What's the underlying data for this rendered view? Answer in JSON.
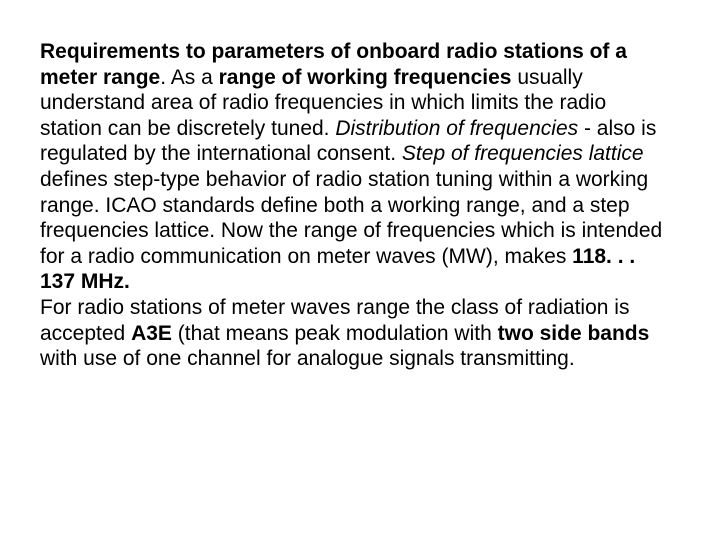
{
  "doc": {
    "font_family": "Arial",
    "font_size_pt": 21,
    "line_height": 1.22,
    "text_color": "#000000",
    "background_color": "#ffffff",
    "t1": "Requirements to parameters of onboard radio stations of a meter range",
    "t2": ". As a ",
    "t3": "range of working frequencies",
    "t4": " usually understand area of radio frequencies in which limits the radio station can be discretely tuned. ",
    "t5": "Distribution of frequencies",
    "t6": " - also is regulated by the international consent. ",
    "t7": "Step of frequencies lattice",
    "t8": " defines step-type behavior of radio station tuning within a working range.  ICAO standards define both a working range, and a step frequencies lattice. Now the range of frequencies which is intended for a radio communication on meter waves (MW), makes ",
    "t9": "118. . . 137 MHz.",
    "t10": "For radio stations of meter waves range the class of radiation is accepted ",
    "t11": "А3Е",
    "t12": " (that means peak modulation with ",
    "t13": "two side bands",
    "t14": " with use of one channel for analogue signals transmitting."
  }
}
